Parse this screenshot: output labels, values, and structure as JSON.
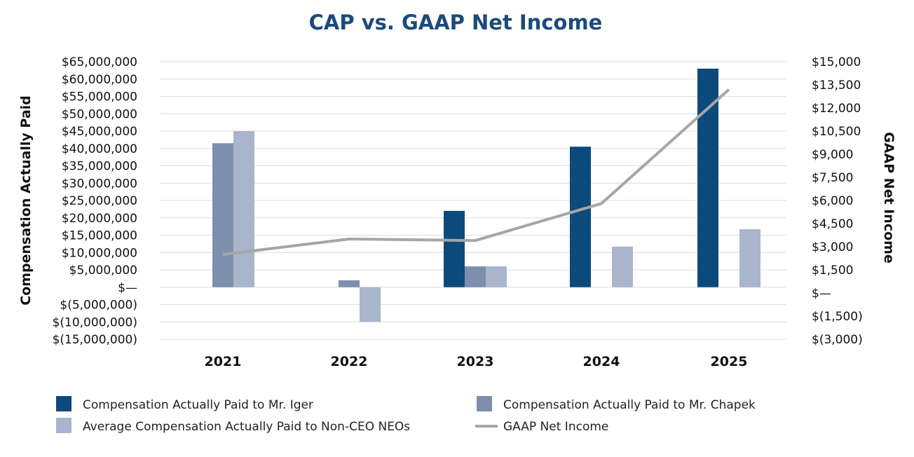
{
  "chart_data": {
    "type": "bar",
    "title": "CAP vs. GAAP Net Income",
    "categories": [
      "2021",
      "2022",
      "2023",
      "2024",
      "2025"
    ],
    "ylabel": "Compensation Actually Paid",
    "ylabel_right": "GAAP Net Income",
    "ylim": [
      -15000000,
      65000000
    ],
    "ylim_right": [
      -3000,
      15000
    ],
    "yticks_left": [
      "$65,000,000",
      "$60,000,000",
      "$55,000,000",
      "$50,000,000",
      "$45,000,000",
      "$40,000,000",
      "$35,000,000",
      "$30,000,000",
      "$25,000,000",
      "$20,000,000",
      "$15,000,000",
      "$10,000,000",
      "$5,000,000",
      "$—",
      "$(5,000,000)",
      "$(10,000,000)",
      "$(15,000,000)"
    ],
    "yticks_right": [
      "$15,000",
      "$13,500",
      "$12,000",
      "$10,500",
      "$9,000",
      "$7,500",
      "$6,000",
      "$4,500",
      "$3,000",
      "$1,500",
      "$—",
      "$(1,500)",
      "$(3,000)"
    ],
    "series": [
      {
        "name": "Compensation Actually Paid to Mr. Iger",
        "color": "#0c4a7c",
        "values": [
          null,
          null,
          22000000,
          40500000,
          63000000
        ]
      },
      {
        "name": "Compensation Actually Paid to Mr. Chapek",
        "color": "#7d8fad",
        "values": [
          41500000,
          2000000,
          6000000,
          null,
          null
        ]
      },
      {
        "name": "Average Compensation Actually Paid to Non-CEO NEOs",
        "color": "#a9b5cc",
        "values": [
          45000000,
          -10000000,
          6000000,
          11700000,
          16700000
        ]
      }
    ],
    "line_series": {
      "name": "GAAP Net Income",
      "color": "#a6a6a6",
      "axis": "right",
      "values": [
        2500,
        3500,
        3400,
        5800,
        13200
      ]
    },
    "legend": [
      {
        "label": "Compensation Actually Paid to Mr. Iger",
        "kind": "box",
        "color": "#0c4a7c"
      },
      {
        "label": "Compensation Actually Paid to Mr. Chapek",
        "kind": "box",
        "color": "#7d8fad"
      },
      {
        "label": "Average Compensation Actually Paid to Non-CEO NEOs",
        "kind": "box",
        "color": "#a9b5cc"
      },
      {
        "label": "GAAP Net Income",
        "kind": "line",
        "color": "#a6a6a6"
      }
    ],
    "legend_position": "bottom",
    "grid": true
  }
}
